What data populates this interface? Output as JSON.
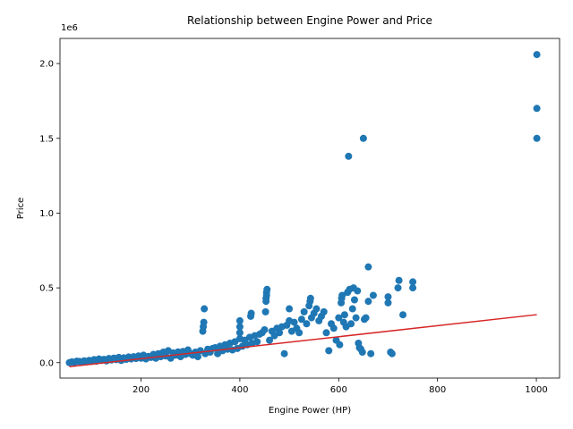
{
  "chart_data": {
    "type": "scatter",
    "title": "Relationship between Engine Power and Price",
    "xlabel": "Engine Power (HP)",
    "ylabel": "Price",
    "y_offset_label": "1e6",
    "xlim": [
      36,
      1047
    ],
    "ylim": [
      -103000,
      2168000
    ],
    "xticks": [
      200,
      400,
      600,
      800,
      1000
    ],
    "xtick_labels": [
      "200",
      "400",
      "600",
      "800",
      "1000"
    ],
    "yticks": [
      0,
      500000,
      1000000,
      1500000,
      2000000
    ],
    "ytick_labels": [
      "0.0",
      "0.5",
      "1.0",
      "1.5",
      "2.0"
    ],
    "grid": false,
    "colors": {
      "points": "#1f77b4",
      "trendline": "#d62728"
    },
    "series": [
      {
        "values": [
          [
            55,
            0
          ],
          [
            60,
            5000
          ],
          [
            65,
            2000
          ],
          [
            70,
            10000
          ],
          [
            75,
            8000
          ],
          [
            80,
            5000
          ],
          [
            85,
            12000
          ],
          [
            90,
            6000
          ],
          [
            95,
            15000
          ],
          [
            100,
            8000
          ],
          [
            105,
            20000
          ],
          [
            110,
            10000
          ],
          [
            115,
            25000
          ],
          [
            120,
            15000
          ],
          [
            125,
            22000
          ],
          [
            130,
            12000
          ],
          [
            135,
            28000
          ],
          [
            140,
            18000
          ],
          [
            145,
            30000
          ],
          [
            150,
            20000
          ],
          [
            155,
            35000
          ],
          [
            160,
            15000
          ],
          [
            165,
            32000
          ],
          [
            170,
            22000
          ],
          [
            175,
            38000
          ],
          [
            180,
            25000
          ],
          [
            185,
            40000
          ],
          [
            190,
            28000
          ],
          [
            195,
            45000
          ],
          [
            200,
            30000
          ],
          [
            205,
            50000
          ],
          [
            210,
            25000
          ],
          [
            215,
            42000
          ],
          [
            220,
            35000
          ],
          [
            225,
            55000
          ],
          [
            230,
            30000
          ],
          [
            235,
            60000
          ],
          [
            240,
            40000
          ],
          [
            245,
            70000
          ],
          [
            250,
            45000
          ],
          [
            255,
            80000
          ],
          [
            260,
            30000
          ],
          [
            265,
            65000
          ],
          [
            270,
            50000
          ],
          [
            275,
            72000
          ],
          [
            280,
            40000
          ],
          [
            285,
            75000
          ],
          [
            290,
            55000
          ],
          [
            295,
            85000
          ],
          [
            300,
            60000
          ],
          [
            305,
            50000
          ],
          [
            310,
            70000
          ],
          [
            315,
            40000
          ],
          [
            320,
            80000
          ],
          [
            325,
            210000
          ],
          [
            326,
            240000
          ],
          [
            327,
            270000
          ],
          [
            328,
            360000
          ],
          [
            330,
            60000
          ],
          [
            335,
            90000
          ],
          [
            340,
            70000
          ],
          [
            345,
            95000
          ],
          [
            350,
            100000
          ],
          [
            355,
            60000
          ],
          [
            360,
            110000
          ],
          [
            365,
            80000
          ],
          [
            370,
            120000
          ],
          [
            375,
            90000
          ],
          [
            380,
            130000
          ],
          [
            385,
            85000
          ],
          [
            390,
            140000
          ],
          [
            395,
            95000
          ],
          [
            400,
            160000
          ],
          [
            400,
            200000
          ],
          [
            400,
            240000
          ],
          [
            400,
            280000
          ],
          [
            405,
            110000
          ],
          [
            410,
            150000
          ],
          [
            415,
            120000
          ],
          [
            420,
            170000
          ],
          [
            422,
            310000
          ],
          [
            423,
            330000
          ],
          [
            425,
            130000
          ],
          [
            430,
            180000
          ],
          [
            435,
            140000
          ],
          [
            440,
            190000
          ],
          [
            445,
            200000
          ],
          [
            450,
            220000
          ],
          [
            452,
            340000
          ],
          [
            453,
            410000
          ],
          [
            453,
            430000
          ],
          [
            454,
            450000
          ],
          [
            454,
            470000
          ],
          [
            455,
            490000
          ],
          [
            460,
            150000
          ],
          [
            465,
            210000
          ],
          [
            470,
            180000
          ],
          [
            475,
            230000
          ],
          [
            480,
            200000
          ],
          [
            485,
            240000
          ],
          [
            490,
            60000
          ],
          [
            495,
            250000
          ],
          [
            500,
            280000
          ],
          [
            500,
            360000
          ],
          [
            505,
            210000
          ],
          [
            510,
            270000
          ],
          [
            515,
            230000
          ],
          [
            520,
            200000
          ],
          [
            525,
            290000
          ],
          [
            530,
            340000
          ],
          [
            535,
            260000
          ],
          [
            540,
            380000
          ],
          [
            542,
            410000
          ],
          [
            543,
            430000
          ],
          [
            545,
            300000
          ],
          [
            550,
            330000
          ],
          [
            555,
            360000
          ],
          [
            560,
            280000
          ],
          [
            565,
            310000
          ],
          [
            570,
            340000
          ],
          [
            575,
            200000
          ],
          [
            580,
            80000
          ],
          [
            585,
            260000
          ],
          [
            590,
            230000
          ],
          [
            595,
            150000
          ],
          [
            600,
            300000
          ],
          [
            602,
            120000
          ],
          [
            605,
            400000
          ],
          [
            606,
            430000
          ],
          [
            607,
            450000
          ],
          [
            610,
            270000
          ],
          [
            612,
            320000
          ],
          [
            615,
            240000
          ],
          [
            618,
            470000
          ],
          [
            620,
            1380000
          ],
          [
            622,
            490000
          ],
          [
            625,
            260000
          ],
          [
            628,
            360000
          ],
          [
            630,
            500000
          ],
          [
            632,
            420000
          ],
          [
            635,
            300000
          ],
          [
            638,
            480000
          ],
          [
            640,
            130000
          ],
          [
            642,
            100000
          ],
          [
            645,
            90000
          ],
          [
            648,
            70000
          ],
          [
            650,
            1500000
          ],
          [
            652,
            290000
          ],
          [
            655,
            300000
          ],
          [
            660,
            640000
          ],
          [
            660,
            410000
          ],
          [
            665,
            60000
          ],
          [
            670,
            450000
          ],
          [
            700,
            440000
          ],
          [
            700,
            400000
          ],
          [
            705,
            70000
          ],
          [
            708,
            60000
          ],
          [
            720,
            500000
          ],
          [
            722,
            550000
          ],
          [
            730,
            320000
          ],
          [
            750,
            500000
          ],
          [
            750,
            540000
          ],
          [
            1001,
            1500000
          ],
          [
            1001,
            1700000
          ],
          [
            1001,
            2060000
          ]
        ]
      }
    ],
    "trendline": {
      "slope": 367.8,
      "intercept": -47200,
      "x_range": [
        55,
        1001
      ]
    }
  }
}
